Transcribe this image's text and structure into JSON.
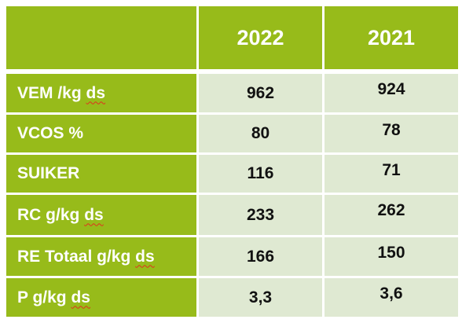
{
  "header": {
    "col1": "",
    "col2": "2022",
    "col3": "2021"
  },
  "rows": [
    {
      "label": "VEM /kg",
      "underlined": "ds",
      "v2022": "962",
      "v2021": "924"
    },
    {
      "label": "VCOS %",
      "underlined": "",
      "v2022": "80",
      "v2021": "78"
    },
    {
      "label": "SUIKER",
      "underlined": "",
      "v2022": "116",
      "v2021": "71"
    },
    {
      "label": "RC g/kg",
      "underlined": "ds",
      "v2022": "233",
      "v2021": "262"
    },
    {
      "label": "RE Totaal g/kg",
      "underlined": "ds",
      "v2022": "166",
      "v2021": "150"
    },
    {
      "label": "P g/kg",
      "underlined": "ds",
      "v2022": "3,3",
      "v2021": "3,6"
    }
  ],
  "colors": {
    "header_bg": "#97bb1a",
    "cell_bg": "#dfe9d2",
    "grid": "#ffffff",
    "spellcheck": "#e0301e"
  }
}
